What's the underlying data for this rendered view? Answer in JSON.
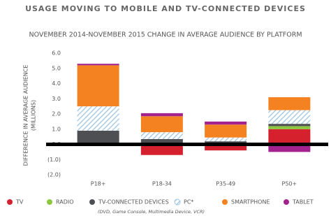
{
  "chart_data": {
    "type": "stacked_bar",
    "title": "USAGE MOVING TO MOBILE AND TV-CONNECTED DEVICES",
    "subtitle": "NOVEMBER 2014-NOVEMBER 2015 CHANGE IN AVERAGE AUDIENCE BY PLATFORM",
    "y_label": [
      "DIFFERENCE IN AVERAGE AUDIENCE",
      "(MILLIONS)"
    ],
    "categories": [
      "P18+",
      "P18-34",
      "P35-49",
      "P50+"
    ],
    "series": [
      {
        "name": "TV",
        "color": "#d5202d",
        "values": [
          -0.1,
          -0.7,
          -0.4,
          1.0
        ]
      },
      {
        "name": "RADIO",
        "color": "#8dc63f",
        "values": [
          0.1,
          0.05,
          0.05,
          0.2
        ]
      },
      {
        "name": "TV-CONNECTED DEVICES",
        "color": "#4d4f53",
        "values": [
          0.8,
          0.3,
          0.15,
          0.15
        ]
      },
      {
        "name": "PC*",
        "color": "#9cc3e0",
        "hatched": true,
        "values": [
          1.6,
          0.45,
          0.25,
          0.9
        ]
      },
      {
        "name": "SMARTPHONE",
        "color": "#f58220",
        "values": [
          2.7,
          1.05,
          0.85,
          0.85
        ]
      },
      {
        "name": "TABLET",
        "color": "#a3238e",
        "values": [
          0.1,
          0.2,
          0.2,
          -0.5
        ]
      }
    ],
    "legend_note": "(DVD, Game Console, Multimedia Device, VCR)",
    "ylim": [
      -2,
      6
    ],
    "yticks": [
      {
        "value": -2,
        "label": "(2.0)"
      },
      {
        "value": -1,
        "label": "(1.0)"
      },
      {
        "value": 0,
        "label": "0.0"
      },
      {
        "value": 1,
        "label": "1.0"
      },
      {
        "value": 2,
        "label": "2.0"
      },
      {
        "value": 3,
        "label": "3.0"
      },
      {
        "value": 4,
        "label": "4.0"
      },
      {
        "value": 5,
        "label": "5.0"
      },
      {
        "value": 6,
        "label": "6.0"
      }
    ],
    "legend": "bottom"
  }
}
